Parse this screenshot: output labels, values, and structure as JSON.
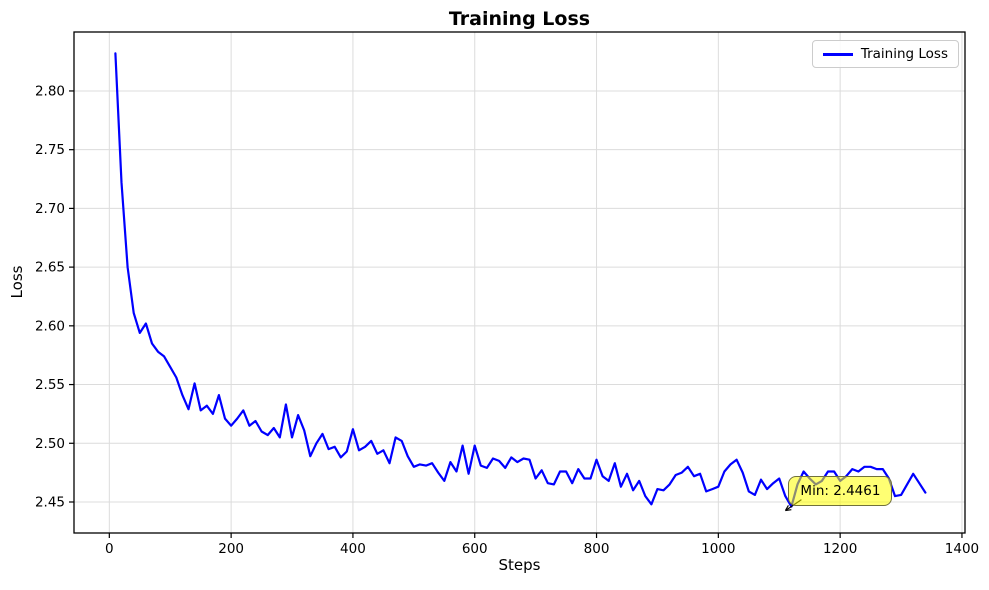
{
  "chart_data": {
    "type": "line",
    "title": "Training Loss",
    "xlabel": "Steps",
    "ylabel": "Loss",
    "grid": true,
    "legend": {
      "position": "upper right",
      "entries": [
        {
          "label": "Training Loss",
          "color": "#0000ff"
        }
      ]
    },
    "line_color": "#0000ff",
    "grid_color": "#dcdcdc",
    "xlim": [
      -58,
      1405
    ],
    "ylim": [
      2.4236,
      2.8502
    ],
    "xticks": [
      0,
      200,
      400,
      600,
      800,
      1000,
      1200,
      1400
    ],
    "yticks": [
      2.45,
      2.5,
      2.55,
      2.6,
      2.65,
      2.7,
      2.75,
      2.8
    ],
    "ytick_labels": [
      "2.45",
      "2.50",
      "2.55",
      "2.60",
      "2.65",
      "2.70",
      "2.75",
      "2.80"
    ],
    "annotation": {
      "text": "Min: 2.4461",
      "point_x": 1120,
      "point_y": 2.4461,
      "bg_color": "#ffff00",
      "border_color": "#70703c"
    },
    "series": [
      {
        "name": "Training Loss",
        "x": [
          10,
          20,
          30,
          40,
          50,
          60,
          70,
          80,
          90,
          100,
          110,
          120,
          130,
          140,
          150,
          160,
          170,
          180,
          190,
          200,
          210,
          220,
          230,
          240,
          250,
          260,
          270,
          280,
          290,
          300,
          310,
          320,
          330,
          340,
          350,
          360,
          370,
          380,
          390,
          400,
          410,
          420,
          430,
          440,
          450,
          460,
          470,
          480,
          490,
          500,
          510,
          520,
          530,
          540,
          550,
          560,
          570,
          580,
          590,
          600,
          610,
          620,
          630,
          640,
          650,
          660,
          670,
          680,
          690,
          700,
          710,
          720,
          730,
          740,
          750,
          760,
          770,
          780,
          790,
          800,
          810,
          820,
          830,
          840,
          850,
          860,
          870,
          880,
          890,
          900,
          910,
          920,
          930,
          940,
          950,
          960,
          970,
          980,
          990,
          1000,
          1010,
          1020,
          1030,
          1040,
          1050,
          1060,
          1070,
          1080,
          1090,
          1100,
          1110,
          1120,
          1130,
          1140,
          1150,
          1160,
          1170,
          1180,
          1190,
          1200,
          1210,
          1220,
          1230,
          1240,
          1250,
          1260,
          1270,
          1280,
          1290,
          1300,
          1310,
          1320,
          1330,
          1340
        ],
        "y": [
          2.832,
          2.722,
          2.65,
          2.611,
          2.594,
          2.602,
          2.585,
          2.578,
          2.574,
          2.565,
          2.556,
          2.541,
          2.529,
          2.551,
          2.528,
          2.532,
          2.525,
          2.541,
          2.521,
          2.515,
          2.521,
          2.528,
          2.515,
          2.519,
          2.51,
          2.507,
          2.513,
          2.505,
          2.533,
          2.505,
          2.524,
          2.511,
          2.489,
          2.5,
          2.508,
          2.495,
          2.497,
          2.488,
          2.493,
          2.512,
          2.494,
          2.497,
          2.502,
          2.491,
          2.494,
          2.483,
          2.505,
          2.502,
          2.489,
          2.48,
          2.482,
          2.481,
          2.483,
          2.475,
          2.468,
          2.484,
          2.476,
          2.498,
          2.474,
          2.498,
          2.481,
          2.479,
          2.487,
          2.485,
          2.479,
          2.488,
          2.484,
          2.487,
          2.486,
          2.47,
          2.477,
          2.466,
          2.465,
          2.476,
          2.476,
          2.466,
          2.478,
          2.47,
          2.47,
          2.486,
          2.472,
          2.468,
          2.483,
          2.463,
          2.474,
          2.46,
          2.468,
          2.455,
          2.448,
          2.461,
          2.46,
          2.465,
          2.473,
          2.475,
          2.48,
          2.472,
          2.474,
          2.459,
          2.461,
          2.463,
          2.476,
          2.482,
          2.486,
          2.475,
          2.459,
          2.456,
          2.469,
          2.461,
          2.466,
          2.47,
          2.455,
          2.4461,
          2.465,
          2.476,
          2.47,
          2.465,
          2.468,
          2.476,
          2.476,
          2.468,
          2.472,
          2.478,
          2.476,
          2.48,
          2.48,
          2.478,
          2.478,
          2.47,
          2.455,
          2.456,
          2.465,
          2.474,
          2.466,
          2.458
        ]
      }
    ]
  }
}
